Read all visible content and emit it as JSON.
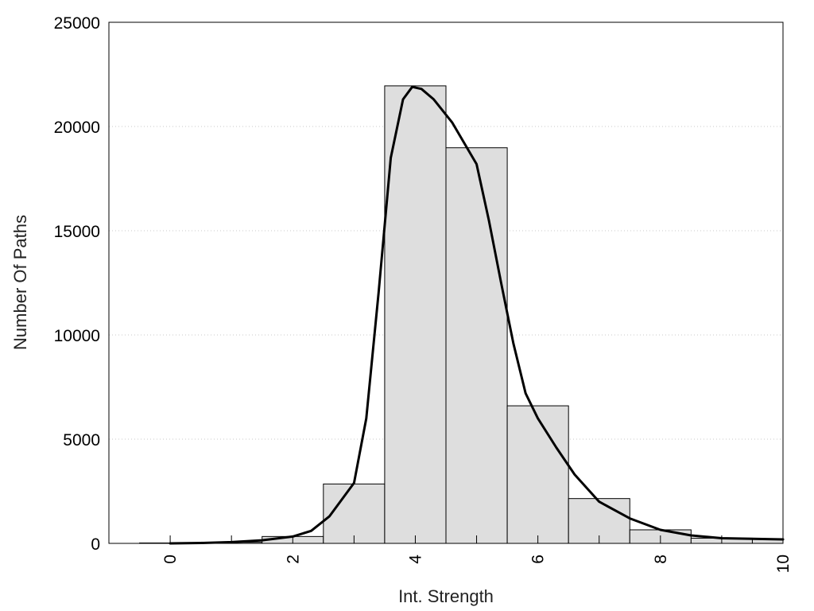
{
  "chart_data": {
    "type": "bar",
    "title": "",
    "xlabel": "Int. Strength",
    "ylabel": "Number Of Paths",
    "xlim": [
      -1,
      10
    ],
    "ylim": [
      0,
      25000
    ],
    "x_ticks": [
      0,
      2,
      4,
      6,
      8,
      10
    ],
    "y_ticks": [
      0,
      5000,
      10000,
      15000,
      20000,
      25000
    ],
    "grid": "horizontal dotted",
    "bar_color": "#dedede",
    "bar_edge_color": "#000000",
    "curve_color": "#000000",
    "bins": [
      {
        "x": 0,
        "value": 20
      },
      {
        "x": 1,
        "value": 50
      },
      {
        "x": 2,
        "value": 330
      },
      {
        "x": 3,
        "value": 2850
      },
      {
        "x": 4,
        "value": 21950
      },
      {
        "x": 5,
        "value": 18980
      },
      {
        "x": 6,
        "value": 6600
      },
      {
        "x": 7,
        "value": 2150
      },
      {
        "x": 8,
        "value": 650
      },
      {
        "x": 9,
        "value": 250
      },
      {
        "x": 10,
        "value": 200
      }
    ],
    "curve": {
      "x": [
        0,
        0.5,
        1,
        1.5,
        2,
        2.3,
        2.6,
        3.0,
        3.2,
        3.4,
        3.6,
        3.8,
        3.95,
        4.1,
        4.3,
        4.6,
        5.0,
        5.2,
        5.4,
        5.6,
        5.8,
        6.0,
        6.3,
        6.6,
        7.0,
        7.5,
        8.0,
        8.5,
        9.0,
        10.0
      ],
      "y": [
        0,
        20,
        60,
        150,
        330,
        600,
        1300,
        2900,
        6000,
        12000,
        18500,
        21300,
        21900,
        21800,
        21300,
        20200,
        18200,
        15500,
        12500,
        9600,
        7200,
        6000,
        4600,
        3300,
        2000,
        1200,
        650,
        380,
        250,
        190
      ]
    }
  }
}
